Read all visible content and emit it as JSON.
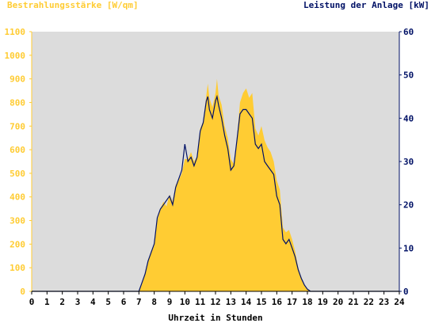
{
  "chart_data": {
    "type": "area",
    "title": "",
    "left_axis": {
      "label": "Bestrahlungsstärke [W/qm]",
      "ticks": [
        "0",
        "100",
        "200",
        "300",
        "400",
        "500",
        "600",
        "700",
        "800",
        "900",
        "1000",
        "1100"
      ],
      "range": [
        0,
        1100
      ],
      "color": "#ffcc33"
    },
    "right_axis": {
      "label": "Leistung der Anlage [kW]",
      "ticks": [
        "0",
        "10",
        "20",
        "30",
        "40",
        "50",
        "60"
      ],
      "range": [
        0,
        60
      ],
      "color": "#001166"
    },
    "x_axis": {
      "label": "Uhrzeit in Stunden",
      "ticks": [
        "0",
        "1",
        "2",
        "3",
        "4",
        "5",
        "6",
        "7",
        "8",
        "9",
        "10",
        "11",
        "12",
        "13",
        "14",
        "15",
        "16",
        "17",
        "18",
        "19",
        "20",
        "21",
        "22",
        "23",
        "24"
      ],
      "range": [
        0,
        24
      ]
    },
    "grid": false,
    "background": "#dcdcdc",
    "series": [
      {
        "name": "Bestrahlungsstärke [W/qm]",
        "axis": "left",
        "style": "area",
        "color": "#ffcc33",
        "points": [
          [
            0,
            0
          ],
          [
            7.0,
            0
          ],
          [
            7.2,
            30
          ],
          [
            7.4,
            80
          ],
          [
            7.6,
            130
          ],
          [
            7.8,
            170
          ],
          [
            8.0,
            200
          ],
          [
            8.2,
            300
          ],
          [
            8.4,
            350
          ],
          [
            8.6,
            380
          ],
          [
            8.8,
            360
          ],
          [
            9.0,
            410
          ],
          [
            9.2,
            380
          ],
          [
            9.4,
            450
          ],
          [
            9.6,
            470
          ],
          [
            9.8,
            500
          ],
          [
            10.0,
            560
          ],
          [
            10.2,
            560
          ],
          [
            10.4,
            590
          ],
          [
            10.6,
            550
          ],
          [
            10.8,
            570
          ],
          [
            11.0,
            690
          ],
          [
            11.2,
            720
          ],
          [
            11.4,
            830
          ],
          [
            11.5,
            880
          ],
          [
            11.6,
            820
          ],
          [
            11.8,
            780
          ],
          [
            12.0,
            840
          ],
          [
            12.1,
            900
          ],
          [
            12.2,
            830
          ],
          [
            12.4,
            790
          ],
          [
            12.6,
            700
          ],
          [
            12.8,
            650
          ],
          [
            13.0,
            560
          ],
          [
            13.2,
            540
          ],
          [
            13.4,
            650
          ],
          [
            13.6,
            800
          ],
          [
            13.8,
            840
          ],
          [
            14.0,
            860
          ],
          [
            14.2,
            820
          ],
          [
            14.4,
            840
          ],
          [
            14.6,
            690
          ],
          [
            14.8,
            660
          ],
          [
            15.0,
            700
          ],
          [
            15.2,
            640
          ],
          [
            15.4,
            610
          ],
          [
            15.6,
            590
          ],
          [
            15.8,
            550
          ],
          [
            16.0,
            470
          ],
          [
            16.2,
            430
          ],
          [
            16.4,
            270
          ],
          [
            16.6,
            250
          ],
          [
            16.8,
            260
          ],
          [
            17.0,
            220
          ],
          [
            17.2,
            170
          ],
          [
            17.4,
            100
          ],
          [
            17.6,
            60
          ],
          [
            17.8,
            30
          ],
          [
            18.0,
            10
          ],
          [
            18.2,
            0
          ],
          [
            24,
            0
          ]
        ]
      },
      {
        "name": "Leistung der Anlage [kW]",
        "axis": "right",
        "style": "line",
        "color": "#001166",
        "points": [
          [
            0,
            0
          ],
          [
            7.0,
            0
          ],
          [
            7.2,
            2
          ],
          [
            7.4,
            4
          ],
          [
            7.6,
            7
          ],
          [
            7.8,
            9
          ],
          [
            8.0,
            11
          ],
          [
            8.2,
            17
          ],
          [
            8.4,
            19
          ],
          [
            8.6,
            20
          ],
          [
            8.8,
            21
          ],
          [
            9.0,
            22
          ],
          [
            9.2,
            20
          ],
          [
            9.4,
            24
          ],
          [
            9.6,
            26
          ],
          [
            9.8,
            28
          ],
          [
            10.0,
            34
          ],
          [
            10.2,
            30
          ],
          [
            10.4,
            31
          ],
          [
            10.6,
            29
          ],
          [
            10.8,
            31
          ],
          [
            11.0,
            37
          ],
          [
            11.2,
            39
          ],
          [
            11.4,
            44
          ],
          [
            11.5,
            45
          ],
          [
            11.6,
            42
          ],
          [
            11.8,
            40
          ],
          [
            12.0,
            44
          ],
          [
            12.1,
            45
          ],
          [
            12.2,
            43
          ],
          [
            12.4,
            40
          ],
          [
            12.6,
            36
          ],
          [
            12.8,
            33
          ],
          [
            13.0,
            28
          ],
          [
            13.2,
            29
          ],
          [
            13.4,
            35
          ],
          [
            13.6,
            41
          ],
          [
            13.8,
            42
          ],
          [
            14.0,
            42
          ],
          [
            14.2,
            41
          ],
          [
            14.4,
            40
          ],
          [
            14.6,
            34
          ],
          [
            14.8,
            33
          ],
          [
            15.0,
            34
          ],
          [
            15.2,
            30
          ],
          [
            15.4,
            29
          ],
          [
            15.6,
            28
          ],
          [
            15.8,
            27
          ],
          [
            16.0,
            22
          ],
          [
            16.2,
            20
          ],
          [
            16.4,
            12
          ],
          [
            16.6,
            11
          ],
          [
            16.8,
            12
          ],
          [
            17.0,
            10
          ],
          [
            17.2,
            8
          ],
          [
            17.4,
            5
          ],
          [
            17.6,
            3
          ],
          [
            17.8,
            1.5
          ],
          [
            18.0,
            0.5
          ],
          [
            18.2,
            0
          ],
          [
            24,
            0
          ]
        ]
      }
    ]
  }
}
